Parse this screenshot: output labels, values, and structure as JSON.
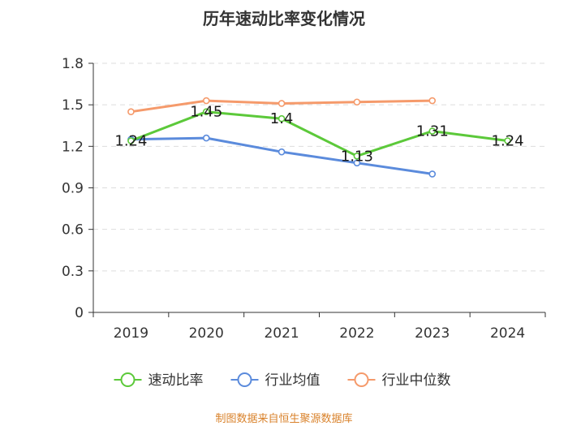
{
  "chart_data": {
    "type": "line",
    "title": "历年速动比率变化情况",
    "categories": [
      "2019",
      "2020",
      "2021",
      "2022",
      "2023",
      "2024"
    ],
    "ylim": [
      0,
      1.8
    ],
    "yticks": [
      "0",
      "0.3",
      "0.6",
      "0.9",
      "1.2",
      "1.5",
      "1.8"
    ],
    "grid": true,
    "legend_position": "bottom",
    "series": [
      {
        "name": "速动比率",
        "color": "#5cc93a",
        "values": [
          1.24,
          1.45,
          1.4,
          1.13,
          1.31,
          1.24
        ],
        "labels": [
          "1.24",
          "1.45",
          "1.4",
          "1.13",
          "1.31",
          "1.24"
        ]
      },
      {
        "name": "行业均值",
        "color": "#5b8bdc",
        "values": [
          1.25,
          1.26,
          1.16,
          1.08,
          1.0,
          null
        ]
      },
      {
        "name": "行业中位数",
        "color": "#f59a6b",
        "values": [
          1.45,
          1.53,
          1.51,
          1.52,
          1.53,
          null
        ]
      }
    ],
    "source": "制图数据来自恒生聚源数据库"
  }
}
